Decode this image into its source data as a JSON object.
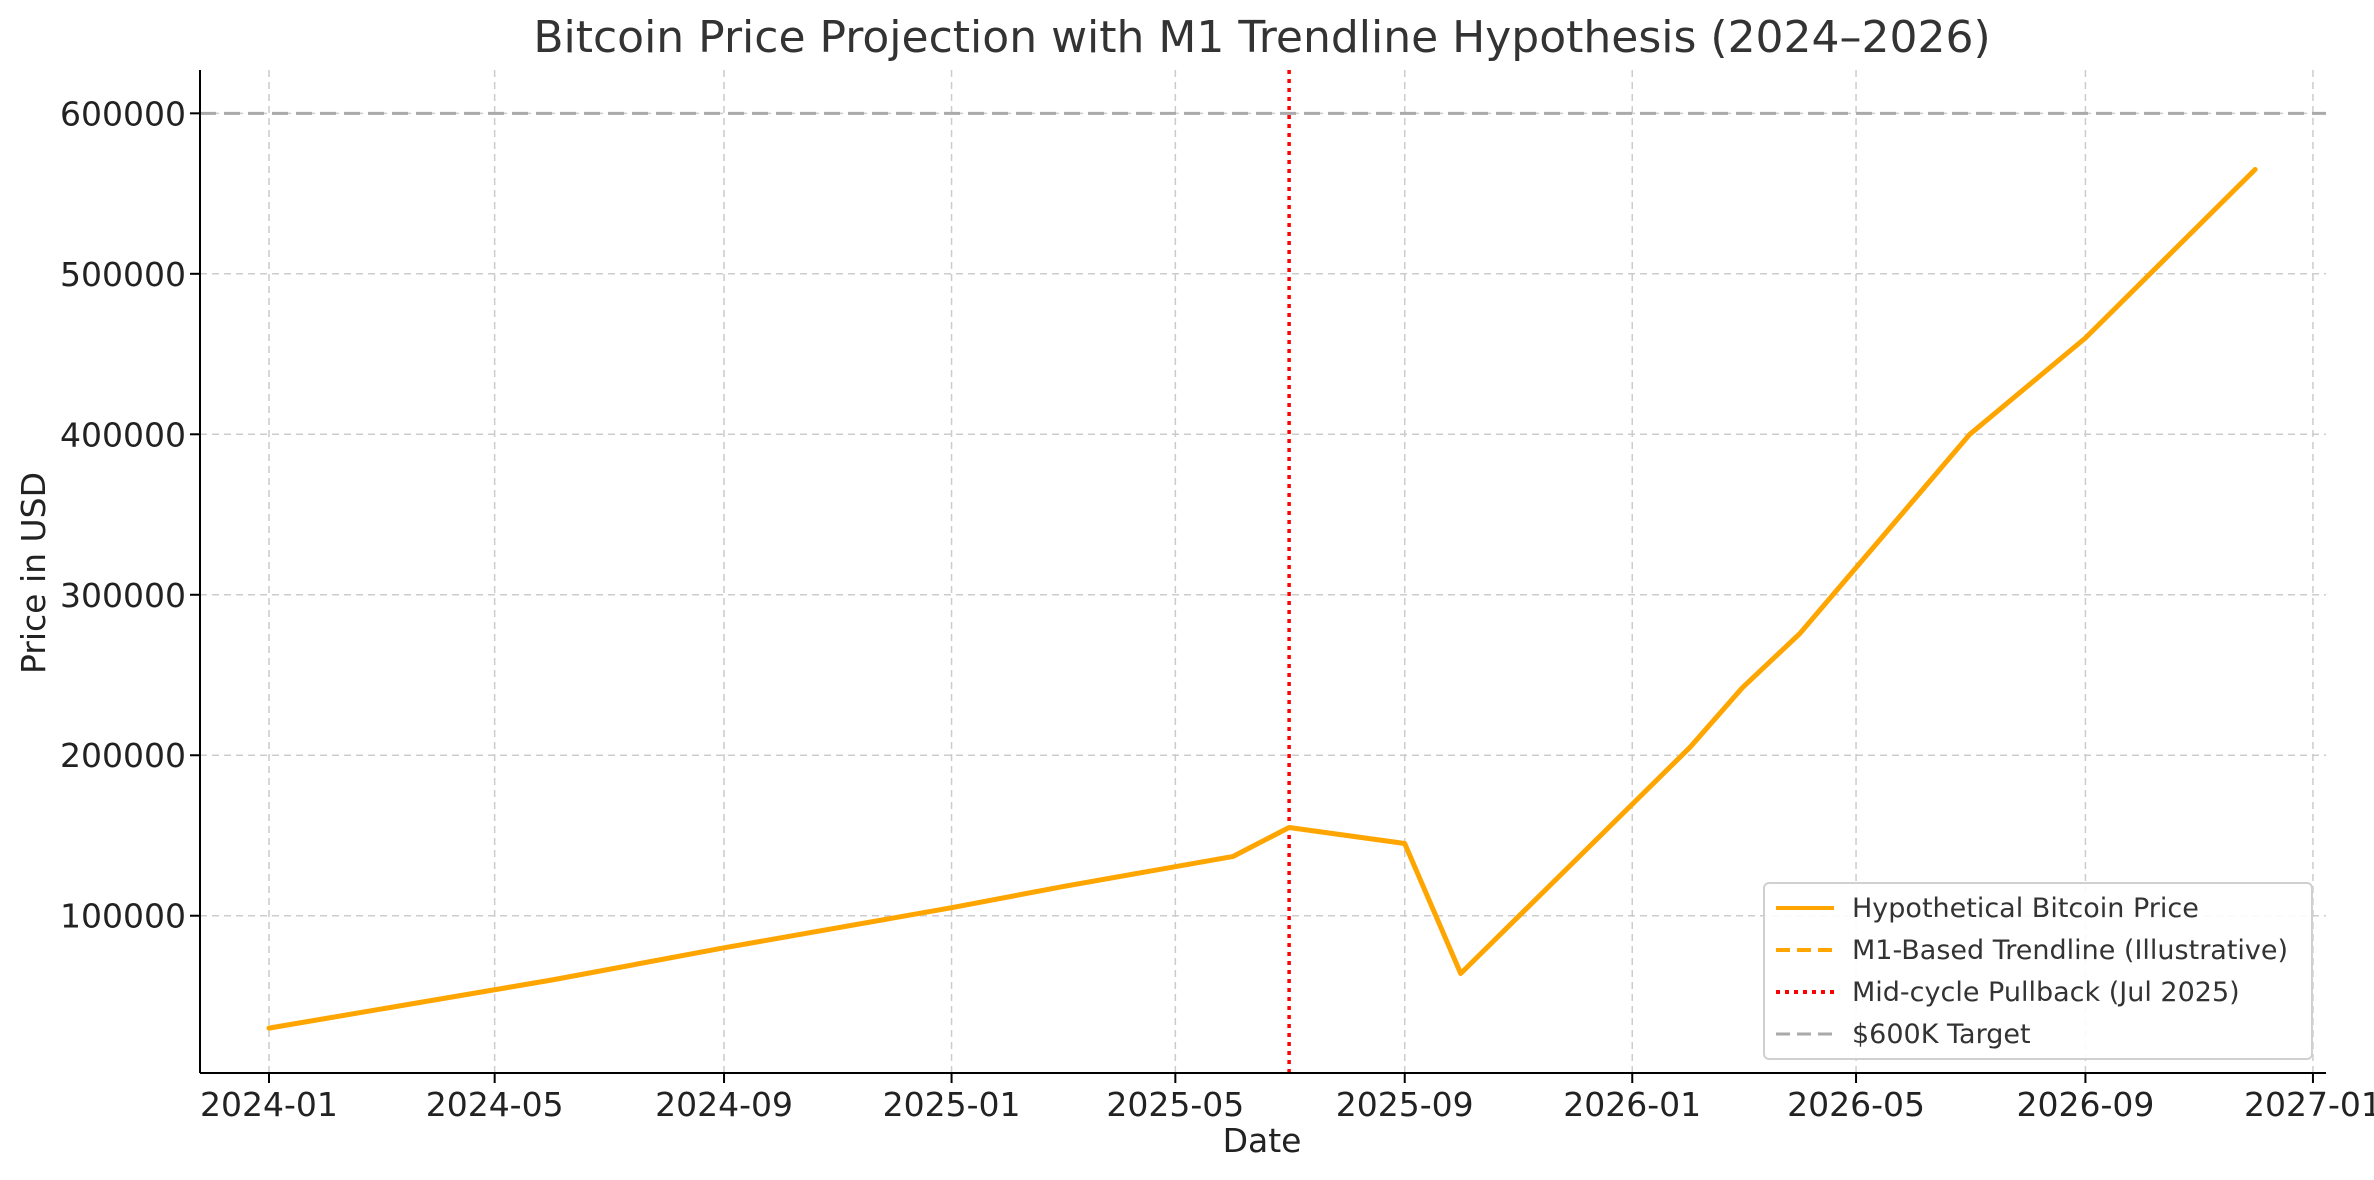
{
  "chart_data": {
    "type": "line",
    "title": "Bitcoin Price Projection with M1 Trendline Hypothesis (2024–2026)",
    "xlabel": "Date",
    "ylabel": "Price in USD",
    "x_ticks": [
      "2024-01",
      "2024-05",
      "2024-09",
      "2025-01",
      "2025-05",
      "2025-09",
      "2026-01",
      "2026-05",
      "2026-09",
      "2027-01"
    ],
    "y_ticks": [
      100000,
      200000,
      300000,
      400000,
      500000,
      600000
    ],
    "xlim": [
      "2023-11-25",
      "2027-01-08"
    ],
    "ylim": [
      2000,
      627000
    ],
    "grid": true,
    "legend_position": "bottom-right",
    "series": [
      {
        "name": "Hypothetical Bitcoin Price",
        "color": "#FFA500",
        "style": "solid",
        "x": [
          "2024-01-01",
          "2024-06-01",
          "2024-09-01",
          "2025-01-01",
          "2025-03-01",
          "2025-06-01",
          "2025-07-01",
          "2025-09-01",
          "2025-10-01",
          "2026-02-01",
          "2026-03-01",
          "2026-04-01",
          "2026-07-01",
          "2026-09-01",
          "2026-12-01"
        ],
        "y": [
          30000,
          60000,
          80000,
          105000,
          118000,
          137000,
          155000,
          145000,
          64000,
          205000,
          242000,
          276000,
          400000,
          460000,
          565000
        ]
      },
      {
        "name": "M1-Based Trendline (Illustrative)",
        "color": "#FFA500",
        "style": "dashed",
        "x": [],
        "y": []
      },
      {
        "name": "Mid-cycle Pullback (Jul 2025)",
        "color": "#FF0000",
        "style": "dotted",
        "type": "vline",
        "x_value": "2025-07-01"
      },
      {
        "name": "$600K Target",
        "color": "#AAAAAA",
        "style": "dashed",
        "type": "hline",
        "y_value": 600000
      }
    ]
  }
}
